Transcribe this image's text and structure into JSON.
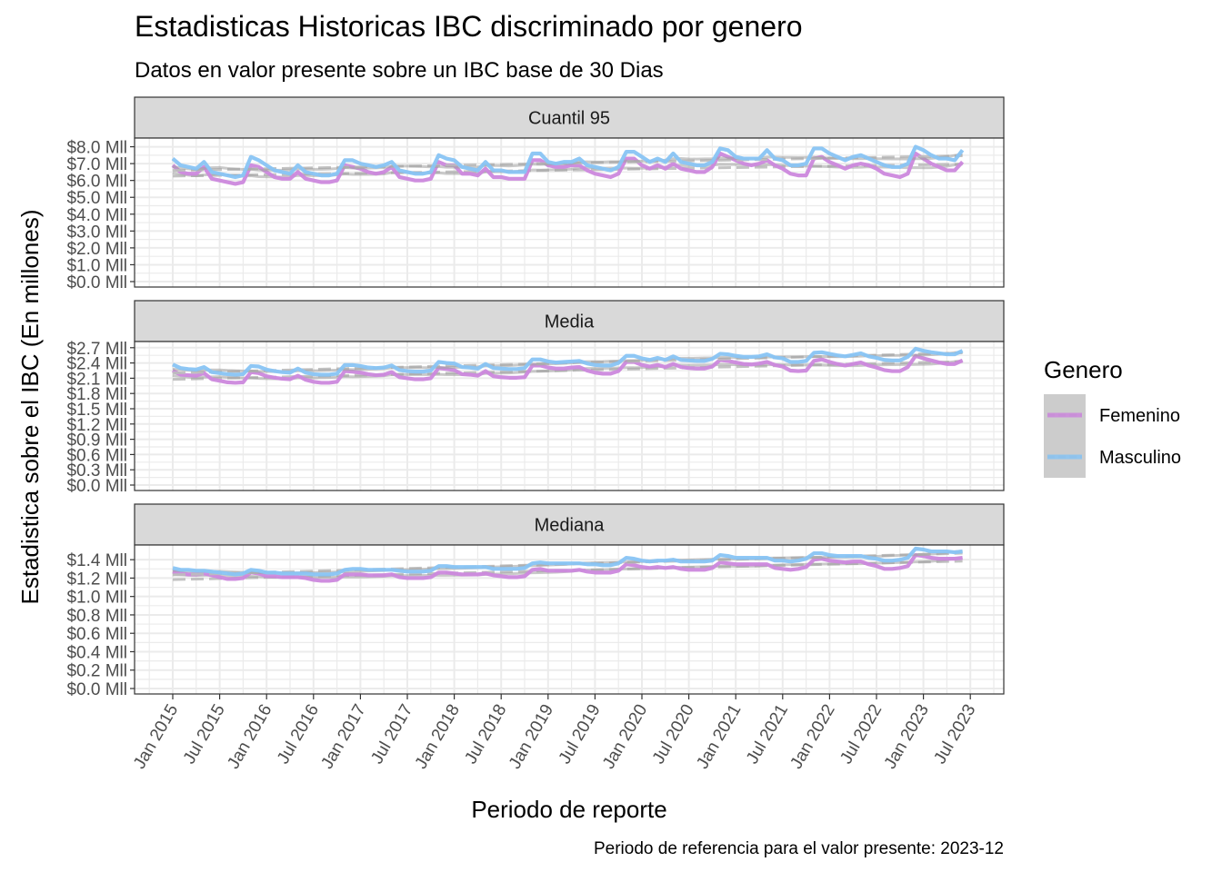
{
  "title": "Estadisticas Historicas IBC discriminado por genero",
  "subtitle": "Datos en valor presente sobre un IBC base de 30 Dias",
  "caption": "Periodo de referencia para el valor presente: 2023-12",
  "colors": {
    "femenino": "#cc88dd",
    "masculino": "#88c4f4",
    "smooth": "#bdbdbd",
    "strip": "#d9d9d9",
    "grid": "#ebebeb",
    "border": "#333333"
  },
  "chart_data": {
    "type": "line",
    "xlabel": "Periodo de reporte",
    "ylabel": "Estadistica sobre el IBC (En millones)",
    "x_start": "2015-01",
    "x_end": "2023-10",
    "x_ticks": [
      "Jan 2015",
      "Jul 2015",
      "Jan 2016",
      "Jul 2016",
      "Jan 2017",
      "Jul 2017",
      "Jan 2018",
      "Jul 2018",
      "Jan 2019",
      "Jul 2019",
      "Jan 2020",
      "Jul 2020",
      "Jan 2021",
      "Jul 2021",
      "Jan 2022",
      "Jul 2022",
      "Jan 2023",
      "Jul 2023"
    ],
    "grid": true,
    "legend": {
      "title": "Genero",
      "position": "right",
      "entries": [
        "Femenino",
        "Masculino"
      ]
    },
    "panels": [
      {
        "label": "Cuantil 95",
        "ylim": [
          0,
          8.3
        ],
        "y_ticks": [
          0,
          1,
          2,
          3,
          4,
          5,
          6,
          7,
          8
        ],
        "y_tick_labels": [
          "$0.0 Mll",
          "$1.0 Mll",
          "$2.0 Mll",
          "$3.0 Mll",
          "$4.0 Mll",
          "$5.0 Mll",
          "$6.0 Mll",
          "$7.0 Mll",
          "$8.0 Mll"
        ],
        "series": [
          {
            "name": "Femenino",
            "values": [
              6.9,
              6.5,
              6.4,
              6.4,
              6.8,
              6.1,
              6.0,
              5.9,
              5.8,
              5.9,
              6.9,
              6.8,
              6.5,
              6.2,
              6.1,
              6.1,
              6.5,
              6.1,
              6.0,
              5.9,
              5.9,
              6.0,
              6.9,
              6.8,
              6.7,
              6.5,
              6.4,
              6.5,
              6.8,
              6.2,
              6.1,
              6.0,
              6.0,
              6.1,
              7.1,
              6.9,
              6.9,
              6.4,
              6.4,
              6.3,
              6.7,
              6.2,
              6.2,
              6.1,
              6.1,
              6.1,
              7.2,
              7.2,
              6.9,
              6.8,
              6.8,
              6.9,
              6.9,
              6.6,
              6.4,
              6.3,
              6.2,
              6.4,
              7.3,
              7.3,
              6.9,
              6.7,
              6.9,
              6.7,
              7.0,
              6.7,
              6.6,
              6.5,
              6.5,
              6.8,
              7.6,
              7.4,
              7.2,
              7.0,
              6.9,
              7.0,
              7.2,
              6.9,
              6.7,
              6.4,
              6.3,
              6.3,
              7.3,
              7.4,
              7.1,
              6.9,
              6.7,
              6.9,
              7.0,
              6.9,
              6.7,
              6.4,
              6.3,
              6.2,
              6.4,
              7.6,
              7.3,
              7.0,
              6.8,
              6.6,
              6.6,
              7.1
            ]
          },
          {
            "name": "Masculino",
            "values": [
              7.3,
              6.9,
              6.8,
              6.7,
              7.1,
              6.5,
              6.4,
              6.3,
              6.2,
              6.3,
              7.4,
              7.2,
              6.9,
              6.6,
              6.5,
              6.4,
              6.9,
              6.5,
              6.4,
              6.3,
              6.3,
              6.4,
              7.2,
              7.2,
              7.0,
              6.9,
              6.8,
              6.9,
              7.1,
              6.6,
              6.5,
              6.4,
              6.4,
              6.5,
              7.5,
              7.3,
              7.2,
              6.8,
              6.7,
              6.6,
              7.1,
              6.6,
              6.6,
              6.5,
              6.5,
              6.5,
              7.6,
              7.6,
              7.1,
              7.0,
              7.1,
              7.1,
              7.3,
              6.9,
              6.8,
              6.7,
              6.6,
              6.8,
              7.7,
              7.7,
              7.4,
              7.1,
              7.3,
              7.1,
              7.6,
              7.1,
              7.0,
              6.9,
              6.9,
              7.1,
              7.9,
              7.8,
              7.4,
              7.3,
              7.3,
              7.3,
              7.8,
              7.3,
              7.2,
              6.9,
              6.9,
              7.0,
              7.9,
              7.9,
              7.6,
              7.4,
              7.2,
              7.4,
              7.5,
              7.3,
              7.1,
              6.9,
              6.8,
              6.8,
              7.0,
              8.0,
              7.8,
              7.5,
              7.3,
              7.3,
              7.2,
              7.8
            ]
          }
        ]
      },
      {
        "label": "Media",
        "ylim": [
          0,
          2.75
        ],
        "y_ticks": [
          0,
          0.3,
          0.6,
          0.9,
          1.2,
          1.5,
          1.8,
          2.1,
          2.4,
          2.7
        ],
        "y_tick_labels": [
          "$0.0 Mll",
          "$0.3 Mll",
          "$0.6 Mll",
          "$0.9 Mll",
          "$1.2 Mll",
          "$1.5 Mll",
          "$1.8 Mll",
          "$2.1 Mll",
          "$2.4 Mll",
          "$2.7 Mll"
        ],
        "series": [
          {
            "name": "Femenino",
            "values": [
              2.25,
              2.17,
              2.16,
              2.15,
              2.2,
              2.08,
              2.05,
              2.02,
              2.01,
              2.02,
              2.22,
              2.2,
              2.14,
              2.11,
              2.09,
              2.08,
              2.15,
              2.07,
              2.03,
              2.01,
              2.01,
              2.03,
              2.24,
              2.23,
              2.21,
              2.18,
              2.16,
              2.17,
              2.22,
              2.12,
              2.1,
              2.08,
              2.08,
              2.1,
              2.3,
              2.28,
              2.26,
              2.18,
              2.17,
              2.15,
              2.24,
              2.14,
              2.12,
              2.11,
              2.11,
              2.12,
              2.35,
              2.35,
              2.31,
              2.29,
              2.29,
              2.31,
              2.32,
              2.25,
              2.21,
              2.19,
              2.19,
              2.24,
              2.42,
              2.42,
              2.36,
              2.33,
              2.36,
              2.32,
              2.38,
              2.32,
              2.3,
              2.29,
              2.29,
              2.33,
              2.46,
              2.44,
              2.41,
              2.38,
              2.37,
              2.39,
              2.42,
              2.36,
              2.33,
              2.25,
              2.24,
              2.25,
              2.44,
              2.47,
              2.42,
              2.38,
              2.35,
              2.38,
              2.41,
              2.35,
              2.31,
              2.26,
              2.24,
              2.24,
              2.32,
              2.54,
              2.49,
              2.45,
              2.41,
              2.38,
              2.38,
              2.45
            ]
          },
          {
            "name": "Masculino",
            "values": [
              2.37,
              2.3,
              2.28,
              2.27,
              2.32,
              2.22,
              2.2,
              2.18,
              2.17,
              2.18,
              2.34,
              2.33,
              2.27,
              2.24,
              2.22,
              2.21,
              2.29,
              2.21,
              2.18,
              2.17,
              2.17,
              2.19,
              2.36,
              2.36,
              2.34,
              2.31,
              2.3,
              2.31,
              2.35,
              2.26,
              2.24,
              2.23,
              2.23,
              2.25,
              2.42,
              2.4,
              2.39,
              2.32,
              2.31,
              2.29,
              2.38,
              2.3,
              2.29,
              2.28,
              2.28,
              2.3,
              2.47,
              2.47,
              2.43,
              2.41,
              2.42,
              2.43,
              2.44,
              2.39,
              2.36,
              2.35,
              2.35,
              2.4,
              2.54,
              2.54,
              2.49,
              2.46,
              2.5,
              2.46,
              2.53,
              2.46,
              2.45,
              2.44,
              2.44,
              2.48,
              2.58,
              2.57,
              2.54,
              2.52,
              2.52,
              2.53,
              2.57,
              2.51,
              2.49,
              2.42,
              2.42,
              2.44,
              2.6,
              2.61,
              2.58,
              2.55,
              2.53,
              2.56,
              2.59,
              2.53,
              2.5,
              2.46,
              2.45,
              2.45,
              2.52,
              2.68,
              2.64,
              2.61,
              2.59,
              2.57,
              2.57,
              2.64
            ]
          }
        ]
      },
      {
        "label": "Mediana",
        "ylim": [
          0,
          1.52
        ],
        "y_ticks": [
          0,
          0.2,
          0.4,
          0.6,
          0.8,
          1.0,
          1.2,
          1.4
        ],
        "y_tick_labels": [
          "$0.0 Mll",
          "$0.2 Mll",
          "$0.4 Mll",
          "$0.6 Mll",
          "$0.8 Mll",
          "$1.0 Mll",
          "$1.2 Mll",
          "$1.4 Mll"
        ],
        "series": [
          {
            "name": "Femenino",
            "values": [
              1.27,
              1.25,
              1.24,
              1.24,
              1.25,
              1.23,
              1.21,
              1.19,
              1.19,
              1.2,
              1.26,
              1.25,
              1.22,
              1.22,
              1.21,
              1.21,
              1.21,
              1.2,
              1.18,
              1.17,
              1.17,
              1.18,
              1.24,
              1.24,
              1.24,
              1.23,
              1.23,
              1.23,
              1.24,
              1.21,
              1.2,
              1.2,
              1.2,
              1.21,
              1.26,
              1.26,
              1.25,
              1.24,
              1.24,
              1.24,
              1.25,
              1.23,
              1.22,
              1.21,
              1.21,
              1.22,
              1.29,
              1.3,
              1.28,
              1.28,
              1.28,
              1.28,
              1.29,
              1.27,
              1.26,
              1.26,
              1.26,
              1.28,
              1.35,
              1.34,
              1.32,
              1.31,
              1.32,
              1.31,
              1.32,
              1.3,
              1.29,
              1.29,
              1.29,
              1.31,
              1.37,
              1.36,
              1.35,
              1.35,
              1.35,
              1.35,
              1.35,
              1.31,
              1.3,
              1.29,
              1.3,
              1.32,
              1.4,
              1.41,
              1.39,
              1.38,
              1.37,
              1.38,
              1.38,
              1.35,
              1.33,
              1.3,
              1.3,
              1.31,
              1.33,
              1.45,
              1.44,
              1.42,
              1.41,
              1.41,
              1.41,
              1.42
            ]
          },
          {
            "name": "Masculino",
            "values": [
              1.31,
              1.29,
              1.29,
              1.28,
              1.28,
              1.27,
              1.26,
              1.25,
              1.24,
              1.25,
              1.29,
              1.28,
              1.26,
              1.26,
              1.25,
              1.25,
              1.25,
              1.25,
              1.24,
              1.24,
              1.24,
              1.25,
              1.29,
              1.3,
              1.3,
              1.29,
              1.29,
              1.29,
              1.29,
              1.28,
              1.27,
              1.27,
              1.27,
              1.28,
              1.33,
              1.33,
              1.32,
              1.32,
              1.32,
              1.32,
              1.32,
              1.3,
              1.3,
              1.3,
              1.3,
              1.31,
              1.36,
              1.37,
              1.36,
              1.36,
              1.36,
              1.36,
              1.36,
              1.35,
              1.35,
              1.34,
              1.34,
              1.36,
              1.42,
              1.41,
              1.39,
              1.38,
              1.39,
              1.39,
              1.4,
              1.38,
              1.38,
              1.38,
              1.38,
              1.39,
              1.45,
              1.44,
              1.42,
              1.42,
              1.42,
              1.42,
              1.42,
              1.39,
              1.39,
              1.38,
              1.39,
              1.41,
              1.47,
              1.47,
              1.45,
              1.44,
              1.44,
              1.44,
              1.44,
              1.42,
              1.41,
              1.39,
              1.39,
              1.4,
              1.42,
              1.52,
              1.51,
              1.49,
              1.49,
              1.49,
              1.48,
              1.49
            ]
          }
        ]
      }
    ]
  }
}
